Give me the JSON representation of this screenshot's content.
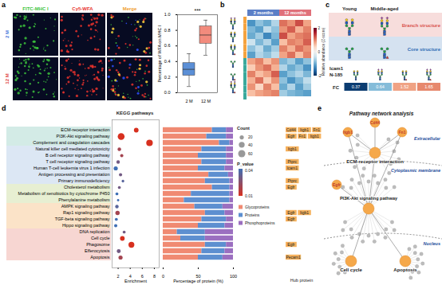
{
  "panel_labels": [
    "a",
    "b",
    "c",
    "d",
    "e"
  ],
  "microscopy": {
    "columns": [
      "FITC-MHC I",
      "Cy5-WFA",
      "Merge"
    ],
    "column_colors": [
      "#3cc43c",
      "#e8322d",
      "#f0a030"
    ],
    "rows": [
      "2 M",
      "12 M"
    ],
    "row_colors": [
      "#3a6fd8",
      "#e0403a"
    ]
  },
  "chart_data": [
    {
      "type": "box",
      "categories": [
        "2 M",
        "12 M"
      ],
      "y_label": "Percentage of WFA on MHC I",
      "ylim": [
        0,
        1
      ],
      "yticks": [
        {
          "value": 0,
          "label": "0.0"
        },
        0.2,
        0.4,
        0.6,
        0.8,
        {
          "value": 1,
          "label": "1.0"
        }
      ],
      "whisker_low": [
        0.08,
        0.48
      ],
      "q1": [
        0.22,
        0.63
      ],
      "median": [
        0.3,
        0.74
      ],
      "q3": [
        0.38,
        0.85
      ],
      "whisker_high": [
        0.5,
        0.93
      ],
      "colors": [
        "#5b8fd6",
        "#f28b7d"
      ],
      "annotation": "***"
    },
    {
      "type": "heatmap",
      "groups": [
        {
          "name": "2 months",
          "color": "#5b7fc7",
          "cells": [
            [
              -1.2,
              -0.8,
              -1.0,
              -0.6
            ],
            [
              -0.9,
              -1.1,
              -0.5,
              -0.8
            ],
            [
              -1.0,
              -0.7,
              -1.3,
              -0.9
            ],
            [
              -0.4,
              -0.9,
              -0.6,
              -1.1
            ],
            [
              -0.8,
              -0.5,
              -1.0,
              -0.7
            ],
            [
              -1.1,
              -0.6,
              -0.8,
              -0.5
            ],
            [
              0.8,
              1.0,
              0.6,
              0.9
            ],
            [
              0.5,
              0.9,
              1.1,
              0.7
            ],
            [
              1.0,
              0.6,
              0.8,
              1.2
            ],
            [
              0.7,
              1.1,
              0.5,
              0.9
            ],
            [
              0.9,
              0.4,
              1.0,
              0.6
            ],
            [
              0.6,
              0.8,
              0.9,
              1.0
            ]
          ]
        },
        {
          "name": "12 months",
          "color": "#e0707a",
          "cells": [
            [
              1.1,
              0.9,
              1.3,
              0.8
            ],
            [
              0.9,
              1.2,
              0.7,
              1.0
            ],
            [
              1.3,
              0.8,
              1.0,
              1.1
            ],
            [
              0.6,
              1.0,
              0.9,
              1.2
            ],
            [
              1.0,
              0.7,
              1.1,
              0.9
            ],
            [
              0.8,
              1.1,
              0.6,
              1.0
            ],
            [
              -0.9,
              -0.7,
              -1.1,
              -0.8
            ],
            [
              -0.6,
              -1.0,
              -0.8,
              -1.2
            ],
            [
              -1.1,
              -0.8,
              -0.6,
              -0.9
            ],
            [
              -0.8,
              -1.2,
              -0.9,
              -0.5
            ],
            [
              -1.0,
              -0.6,
              -1.1,
              -0.7
            ],
            [
              -0.7,
              -0.9,
              -1.0,
              -1.1
            ]
          ]
        }
      ],
      "row_colors": [
        "#f4a340",
        "#f4a340",
        "#f4a340",
        "#f4a340",
        "#f4a340",
        "#f4a340",
        "#3ba99c",
        "#3ba99c",
        "#3ba99c",
        "#3ba99c",
        "#3ba99c",
        "#3ba99c"
      ],
      "colorbar_label": "Relative abundance (Z-score)",
      "colorbar_range": [
        -2,
        2
      ],
      "colorbar_ticks": [
        -2,
        0,
        2
      ]
    },
    {
      "type": "scatter",
      "title": "KEGG pathways",
      "categories": [
        "ECM-receptor interaction",
        "PI3K-Akt signaling pathway",
        "Complement and coagulation cascades",
        "Natural killer cell mediated cytotoxicity",
        "B cell receptor signaling pathway",
        "T cell receptor signaling pathway",
        "Human T-cell leukemia virus 1 infection",
        "Antigen processing and presentation",
        "Primary immunodeficiency",
        "Cholesterol metabolism",
        "Metabolism of xenobiotics by cytochrome P450",
        "Phenylalanine metabolism",
        "AMPK signaling pathway",
        "Rap1 signaling pathway",
        "TGF-beta signaling pathway",
        "Hippo signaling pathway",
        "DNA replication",
        "Cell cycle",
        "Phagosome",
        "Efferocytosis",
        "Apoptosis"
      ],
      "x_label": "Enrichment",
      "xlim": [
        1,
        8.8
      ],
      "xticks": [
        2,
        4,
        6,
        8
      ],
      "values": [
        5.0,
        2.5,
        7.2,
        2.2,
        2.6,
        2.0,
        1.6,
        2.4,
        2.8,
        2.2,
        1.8,
        2.0,
        1.8,
        1.9,
        1.7,
        1.6,
        3.0,
        2.7,
        4.2,
        2.1,
        2.4
      ],
      "count": [
        25,
        55,
        50,
        15,
        12,
        14,
        20,
        12,
        8,
        10,
        10,
        6,
        14,
        22,
        10,
        12,
        10,
        25,
        40,
        18,
        20
      ],
      "p_value": [
        0.005,
        0.008,
        0.003,
        0.02,
        0.02,
        0.03,
        0.04,
        0.03,
        0.035,
        0.03,
        0.04,
        0.04,
        0.035,
        0.02,
        0.04,
        0.04,
        0.03,
        0.01,
        0.004,
        0.03,
        0.02
      ],
      "size_legend_title": "Count",
      "size_legend": [
        20,
        40,
        60
      ],
      "color_legend_title": "P_value",
      "color_legend": [
        0.04,
        0.01
      ],
      "row_colors": [
        "#d3ebe6",
        "#d3ebe6",
        "#d3ebe6",
        "#dce7f4",
        "#dce7f4",
        "#dce7f4",
        "#dce7f4",
        "#dce7f4",
        "#dce7f4",
        "#e7efd2",
        "#e7efd2",
        "#e7efd2",
        "#fbe3c8",
        "#fbe3c8",
        "#fbe3c8",
        "#fbe3c8",
        "#f7d6d2",
        "#f7d6d2",
        "#f7d6d2",
        "#f7d6d2",
        "#f7d6d2"
      ]
    },
    {
      "type": "bar",
      "orientation": "horizontal",
      "stacked": true,
      "categories": [
        "ECM-receptor interaction",
        "PI3K-Akt signaling pathway",
        "Complement and coagulation cascades",
        "Natural killer cell mediated cytotoxicity",
        "B cell receptor signaling pathway",
        "T cell receptor signaling pathway",
        "Human T-cell leukemia virus 1 infection",
        "Antigen processing and presentation",
        "Primary immunodeficiency",
        "Cholesterol metabolism",
        "Metabolism of xenobiotics by cytochrome P450",
        "Phenylalanine metabolism",
        "AMPK signaling pathway",
        "Rap1 signaling pathway",
        "TGF-beta signaling pathway",
        "Hippo signaling pathway",
        "DNA replication",
        "Cell cycle",
        "Phagosome",
        "Efferocytosis",
        "Apoptosis"
      ],
      "x_label": "Percentage of protein (%)",
      "xlim": [
        0,
        100
      ],
      "xticks": [
        0,
        50,
        100
      ],
      "series": [
        {
          "name": "Glycoproteins",
          "color": "#f08a72",
          "values": [
            70,
            62,
            80,
            55,
            50,
            55,
            50,
            65,
            60,
            70,
            40,
            30,
            45,
            60,
            55,
            50,
            20,
            25,
            60,
            55,
            50
          ]
        },
        {
          "name": "Proteins",
          "color": "#5d8fd0",
          "values": [
            20,
            28,
            15,
            35,
            40,
            35,
            38,
            28,
            35,
            25,
            55,
            65,
            40,
            28,
            35,
            38,
            40,
            35,
            30,
            33,
            35
          ]
        },
        {
          "name": "Phosphoproteins",
          "color": "#9b6fc0",
          "values": [
            10,
            10,
            5,
            10,
            10,
            10,
            12,
            7,
            5,
            5,
            5,
            5,
            15,
            12,
            10,
            12,
            40,
            40,
            10,
            12,
            15
          ]
        }
      ],
      "hub_proteins": {
        "title": "Hub protein",
        "values": [
          [
            "Cd44",
            "Itgb1",
            "Fn1"
          ],
          [
            "Egfr",
            "Fn1",
            "Itgb1"
          ],
          [],
          [
            "Itgb1"
          ],
          [],
          [
            "Ptprc"
          ],
          [
            "Icam1"
          ],
          [],
          [
            "Ptprc"
          ],
          [
            "Egfr"
          ],
          [],
          [],
          [],
          [
            "Egfr",
            "Itgb1"
          ],
          [
            "Egfr"
          ],
          [],
          [],
          [],
          [
            "Egfr"
          ],
          [],
          [
            "Pecam1"
          ]
        ]
      }
    }
  ],
  "glycan_panel": {
    "columns": [
      "Young",
      "Middle-aged"
    ],
    "rows": [
      {
        "name": "Branch structure",
        "color": "#d9534f"
      },
      {
        "name": "Core structure",
        "color": "#2f6db5"
      }
    ],
    "site": [
      "Icam1",
      "N-185"
    ],
    "fc_label": "FC",
    "fc_values": [
      0.37,
      0.64,
      1.52,
      1.65
    ]
  },
  "network": {
    "title": "Pathway network analysis",
    "compartments": [
      "Extracellular",
      "Cytoplasmic membrane",
      "Nucleus"
    ],
    "proteins": [
      "Cd44",
      "Itgb1",
      "Fn1",
      "Egfr"
    ],
    "pathways": [
      "ECM-receptor interaction",
      "PI3K-Akt signaling pathway",
      "Cell cycle",
      "Apoptosis"
    ],
    "links": [
      [
        0,
        0
      ],
      [
        1,
        0
      ],
      [
        2,
        0
      ],
      [
        1,
        1
      ],
      [
        2,
        1
      ],
      [
        3,
        1
      ]
    ],
    "pathway_links": [
      [
        0,
        1
      ],
      [
        1,
        2
      ],
      [
        1,
        3
      ]
    ],
    "unlabeled_neighbors": [
      12,
      24,
      8,
      10
    ]
  }
}
